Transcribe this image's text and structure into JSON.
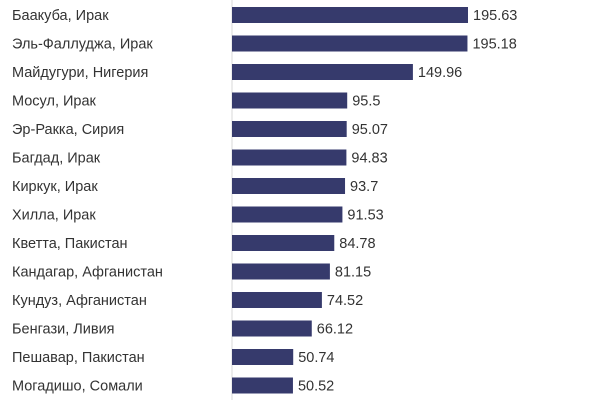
{
  "chart_data": {
    "type": "bar",
    "orientation": "horizontal",
    "categories": [
      "Баакуба, Ирак",
      "Эль-Фаллуджа, Ирак",
      "Майдугури, Нигерия",
      "Мосул, Ирак",
      "Эр-Ракка, Сирия",
      "Багдад, Ирак",
      "Киркук, Ирак",
      "Хилла, Ирак",
      "Кветта, Пакистан",
      "Кандагар, Афганистан",
      "Кундуз, Афганистан",
      "Бенгази, Ливия",
      "Пешавар, Пакистан",
      "Могадишо, Сомали"
    ],
    "values": [
      195.63,
      195.18,
      149.96,
      95.5,
      95.07,
      94.83,
      93.7,
      91.53,
      84.78,
      81.15,
      74.52,
      66.12,
      50.74,
      50.52
    ],
    "color": "#363a6c"
  }
}
